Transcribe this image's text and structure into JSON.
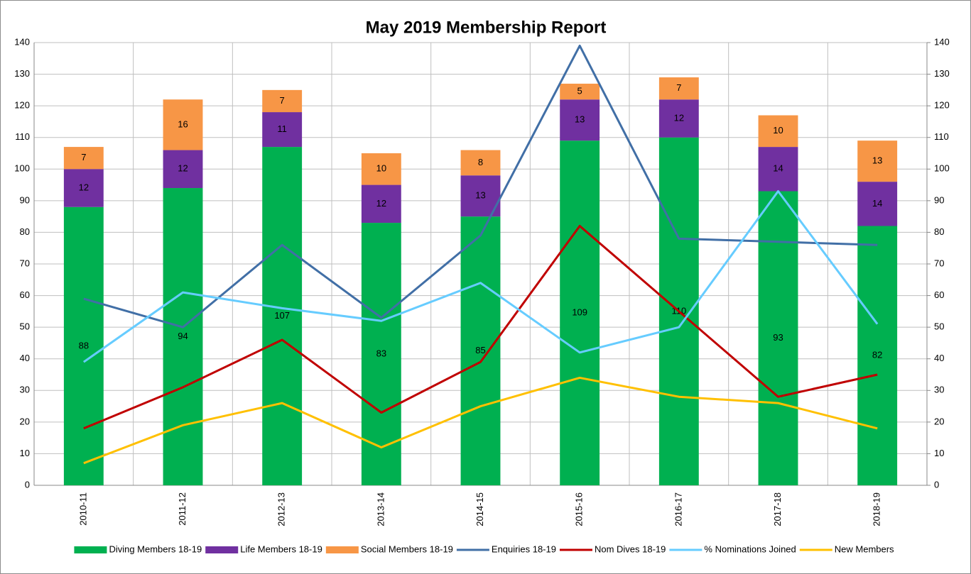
{
  "chart_data": {
    "type": "bar",
    "title": "May 2019 Membership Report",
    "categories": [
      "2010-11",
      "2011-12",
      "2012-13",
      "2013-14",
      "2014-15",
      "2015-16",
      "2016-17",
      "2017-18",
      "2018-19"
    ],
    "stacked": true,
    "grid": true,
    "legend": "bottom",
    "series": [
      {
        "name": "Diving Members 18-19",
        "type": "bar",
        "color": "#00b050",
        "values": [
          88,
          94,
          107,
          83,
          85,
          109,
          110,
          93,
          82
        ]
      },
      {
        "name": "Life Members 18-19",
        "type": "bar",
        "color": "#7030a0",
        "values": [
          12,
          12,
          11,
          12,
          13,
          13,
          12,
          14,
          14
        ]
      },
      {
        "name": "Social Members 18-19",
        "type": "bar",
        "color": "#f79646",
        "values": [
          7,
          16,
          7,
          10,
          8,
          5,
          7,
          10,
          13
        ]
      },
      {
        "name": "Enquiries 18-19",
        "type": "line",
        "color": "#416fa6",
        "values": [
          59,
          50,
          76,
          53,
          79,
          139,
          78,
          77,
          76
        ]
      },
      {
        "name": "Nom Dives 18-19",
        "type": "line",
        "color": "#c00000",
        "values": [
          18,
          31,
          46,
          23,
          39,
          82,
          55,
          28,
          35
        ]
      },
      {
        "name": "% Nominations Joined",
        "type": "line",
        "color": "#66ccff",
        "values": [
          39,
          61,
          56,
          52,
          64,
          42,
          50,
          93,
          51
        ]
      },
      {
        "name": "New Members",
        "type": "line",
        "color": "#ffc000",
        "values": [
          7,
          19,
          26,
          12,
          25,
          34,
          28,
          26,
          18
        ]
      }
    ],
    "ylim": [
      0,
      140
    ],
    "yticks": [
      0,
      10,
      20,
      30,
      40,
      50,
      60,
      70,
      80,
      90,
      100,
      110,
      120,
      130,
      140
    ],
    "y2lim": [
      0,
      140
    ],
    "y2ticks": [
      0,
      10,
      20,
      30,
      40,
      50,
      60,
      70,
      80,
      90,
      100,
      110,
      120,
      130,
      140
    ]
  }
}
